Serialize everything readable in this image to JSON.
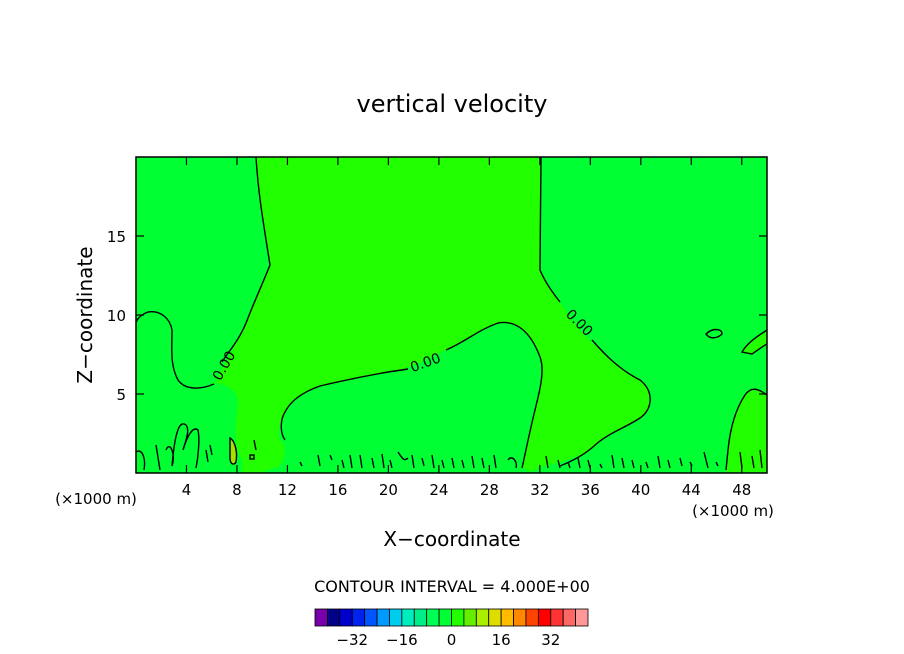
{
  "chart_data": {
    "type": "heatmap",
    "title": "vertical velocity",
    "xlabel": "X−coordinate",
    "ylabel": "Z−coordinate",
    "x_unit_left": "(×1000 m)",
    "x_unit_right": "(×1000 m)",
    "xlim": [
      0,
      50
    ],
    "ylim": [
      0,
      20
    ],
    "x_ticks": [
      4,
      8,
      12,
      16,
      20,
      24,
      28,
      32,
      36,
      40,
      44,
      48
    ],
    "y_ticks": [
      5,
      10,
      15
    ],
    "contour_interval_label": "CONTOUR INTERVAL = 4.000E+00",
    "contour_labels": [
      "0.00",
      "0.00",
      "0.00"
    ],
    "colors": {
      "background_field": "#00ff33",
      "positive_field": "#22ff00",
      "contour_line": "#000000"
    },
    "colorbar": {
      "colors": [
        "#7700aa",
        "#000088",
        "#0000cc",
        "#0022ee",
        "#0055ff",
        "#0099ff",
        "#00ccee",
        "#00eebb",
        "#00ee88",
        "#00ff55",
        "#00ff33",
        "#22ff00",
        "#66ee00",
        "#aaee00",
        "#dddd00",
        "#ffbb00",
        "#ff8800",
        "#ff4400",
        "#ff0000",
        "#ff3333",
        "#ff6666",
        "#ff9999"
      ],
      "tick_values": [
        -32,
        -16,
        0,
        16,
        32
      ],
      "tick_labels": [
        "−32",
        "−16",
        "0",
        "16",
        "32"
      ]
    }
  }
}
